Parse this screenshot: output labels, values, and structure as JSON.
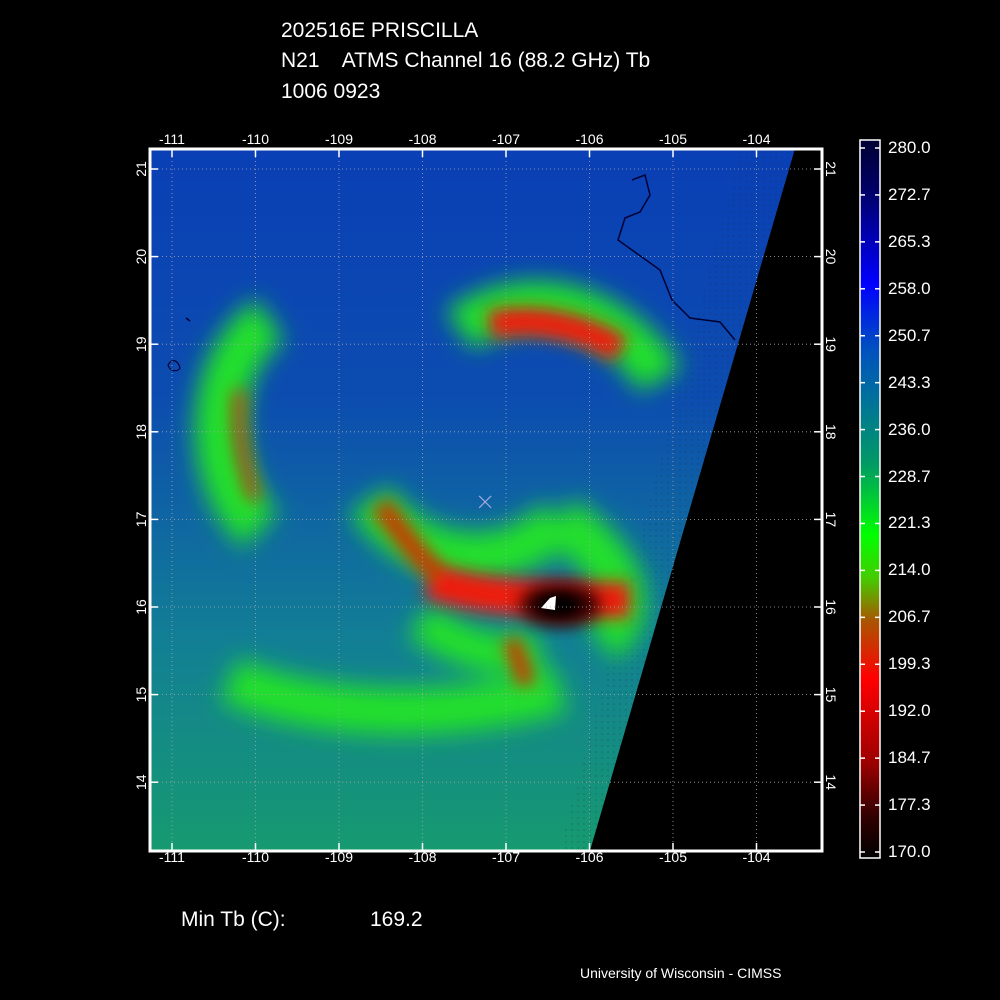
{
  "header": {
    "storm": "202516E PRISCILLA",
    "satellite": "N21",
    "product": "ATMS Channel 16 (88.2 GHz) Tb",
    "datetime": "1006 0923"
  },
  "footer": {
    "min_tb_label": "Min Tb (C):",
    "min_tb_value": "169.2",
    "credit": "University of Wisconsin - CIMSS"
  },
  "map": {
    "lon_ticks": [
      "-111",
      "-110",
      "-109",
      "-108",
      "-107",
      "-106",
      "-105",
      "-104"
    ],
    "lat_ticks": [
      "21",
      "20",
      "19",
      "18",
      "17",
      "16",
      "15",
      "14"
    ],
    "center_marker": {
      "lon": -107.25,
      "lat": 17.2
    },
    "frame_color": "#ffffff",
    "grid": "dotted"
  },
  "colorbar": {
    "labels": [
      "280.0",
      "272.7",
      "265.3",
      "258.0",
      "250.7",
      "243.3",
      "236.0",
      "228.7",
      "221.3",
      "214.0",
      "206.7",
      "199.3",
      "192.0",
      "184.7",
      "177.3",
      "170.0"
    ],
    "colors": [
      "#000033",
      "#00007a",
      "#0000ff",
      "#0044cc",
      "#006699",
      "#008080",
      "#00aa44",
      "#00ff00",
      "#66aa00",
      "#aa4400",
      "#ff0000",
      "#aa0000",
      "#330000",
      "#000000"
    ]
  }
}
